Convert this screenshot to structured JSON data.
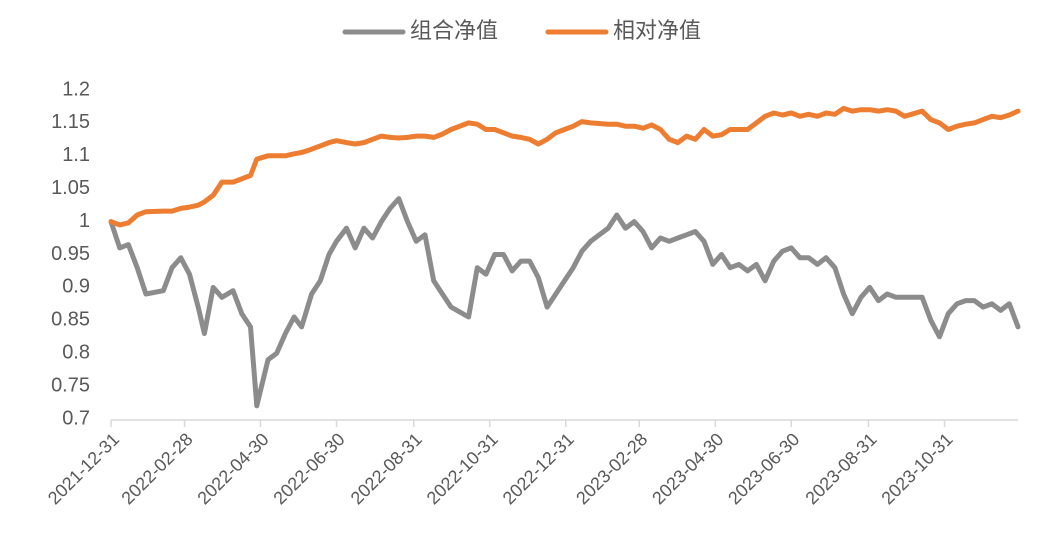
{
  "chart_data": {
    "type": "line",
    "legend": "top",
    "x": [
      "2021-12-31",
      "2022-01-07",
      "2022-01-14",
      "2022-01-21",
      "2022-01-28",
      "2022-02-11",
      "2022-02-18",
      "2022-02-25",
      "2022-03-04",
      "2022-03-11",
      "2022-03-16",
      "2022-03-23",
      "2022-03-30",
      "2022-04-08",
      "2022-04-15",
      "2022-04-22",
      "2022-04-27",
      "2022-05-06",
      "2022-05-13",
      "2022-05-20",
      "2022-05-27",
      "2022-06-02",
      "2022-06-10",
      "2022-06-17",
      "2022-06-24",
      "2022-06-30",
      "2022-07-08",
      "2022-07-15",
      "2022-07-22",
      "2022-07-29",
      "2022-08-05",
      "2022-08-12",
      "2022-08-19",
      "2022-08-26",
      "2022-09-02",
      "2022-09-09",
      "2022-09-16",
      "2022-09-23",
      "2022-09-30",
      "2022-10-14",
      "2022-10-21",
      "2022-10-28",
      "2022-11-04",
      "2022-11-11",
      "2022-11-18",
      "2022-11-25",
      "2022-12-02",
      "2022-12-09",
      "2022-12-16",
      "2022-12-23",
      "2022-12-30",
      "2023-01-06",
      "2023-01-13",
      "2023-01-20",
      "2023-02-03",
      "2023-02-10",
      "2023-02-17",
      "2023-02-24",
      "2023-03-03",
      "2023-03-10",
      "2023-03-17",
      "2023-03-24",
      "2023-03-31",
      "2023-04-07",
      "2023-04-14",
      "2023-04-21",
      "2023-04-28",
      "2023-05-05",
      "2023-05-12",
      "2023-05-19",
      "2023-05-26",
      "2023-06-02",
      "2023-06-09",
      "2023-06-16",
      "2023-06-23",
      "2023-06-30",
      "2023-07-07",
      "2023-07-14",
      "2023-07-21",
      "2023-07-28",
      "2023-08-04",
      "2023-08-11",
      "2023-08-18",
      "2023-08-25",
      "2023-09-01",
      "2023-09-08",
      "2023-09-15",
      "2023-09-22",
      "2023-09-29",
      "2023-10-13",
      "2023-10-20",
      "2023-10-27",
      "2023-11-03",
      "2023-11-10",
      "2023-11-17",
      "2023-11-24",
      "2023-12-01",
      "2023-12-08",
      "2023-12-15",
      "2023-12-22",
      "2023-12-29"
    ],
    "series": [
      {
        "name": "组合净值",
        "color": "#8c8c8c",
        "values": [
          1.0,
          0.96,
          0.965,
          0.93,
          0.89,
          0.895,
          0.93,
          0.945,
          0.92,
          0.87,
          0.83,
          0.9,
          0.885,
          0.895,
          0.86,
          0.84,
          0.72,
          0.79,
          0.8,
          0.83,
          0.855,
          0.84,
          0.89,
          0.91,
          0.95,
          0.97,
          0.99,
          0.96,
          0.99,
          0.975,
          1.0,
          1.02,
          1.035,
          1.0,
          0.97,
          0.98,
          0.91,
          0.89,
          0.87,
          0.855,
          0.93,
          0.92,
          0.95,
          0.95,
          0.925,
          0.94,
          0.94,
          0.915,
          0.87,
          0.89,
          0.91,
          0.93,
          0.955,
          0.97,
          0.99,
          1.01,
          0.99,
          1.0,
          0.985,
          0.96,
          0.975,
          0.97,
          0.975,
          0.98,
          0.985,
          0.97,
          0.935,
          0.95,
          0.93,
          0.935,
          0.925,
          0.935,
          0.91,
          0.94,
          0.955,
          0.96,
          0.945,
          0.945,
          0.935,
          0.945,
          0.93,
          0.89,
          0.86,
          0.885,
          0.9,
          0.88,
          0.89,
          0.885,
          0.885,
          0.885,
          0.85,
          0.825,
          0.86,
          0.875,
          0.88,
          0.88,
          0.87,
          0.875,
          0.865,
          0.875,
          0.84
        ]
      },
      {
        "name": "相对净值",
        "color": "#ed7d31",
        "values": [
          1.0,
          0.995,
          0.998,
          1.01,
          1.015,
          1.016,
          1.016,
          1.02,
          1.022,
          1.025,
          1.03,
          1.04,
          1.06,
          1.06,
          1.065,
          1.07,
          1.095,
          1.1,
          1.1,
          1.1,
          1.103,
          1.105,
          1.11,
          1.115,
          1.12,
          1.123,
          1.12,
          1.118,
          1.12,
          1.125,
          1.13,
          1.128,
          1.127,
          1.128,
          1.13,
          1.13,
          1.128,
          1.133,
          1.14,
          1.15,
          1.148,
          1.14,
          1.14,
          1.135,
          1.13,
          1.128,
          1.125,
          1.118,
          1.125,
          1.135,
          1.14,
          1.145,
          1.152,
          1.15,
          1.148,
          1.148,
          1.145,
          1.145,
          1.142,
          1.147,
          1.14,
          1.125,
          1.12,
          1.13,
          1.125,
          1.14,
          1.13,
          1.132,
          1.14,
          1.14,
          1.14,
          1.15,
          1.16,
          1.165,
          1.162,
          1.165,
          1.16,
          1.163,
          1.16,
          1.165,
          1.163,
          1.172,
          1.168,
          1.17,
          1.17,
          1.168,
          1.17,
          1.168,
          1.16,
          1.168,
          1.155,
          1.15,
          1.14,
          1.145,
          1.148,
          1.15,
          1.155,
          1.16,
          1.158,
          1.162,
          1.168
        ]
      }
    ],
    "xlim": [
      "2021-12-31",
      "2023-12-29"
    ],
    "xticks": [
      "2021-12-31",
      "2022-02-28",
      "2022-04-30",
      "2022-06-30",
      "2022-08-31",
      "2022-10-31",
      "2022-12-31",
      "2023-02-28",
      "2023-04-30",
      "2023-06-30",
      "2023-08-31",
      "2023-10-31"
    ],
    "ylim": [
      0.7,
      1.2
    ],
    "yticks": [
      0.7,
      0.75,
      0.8,
      0.85,
      0.9,
      0.95,
      1,
      1.05,
      1.1,
      1.15,
      1.2
    ],
    "grid": false
  }
}
